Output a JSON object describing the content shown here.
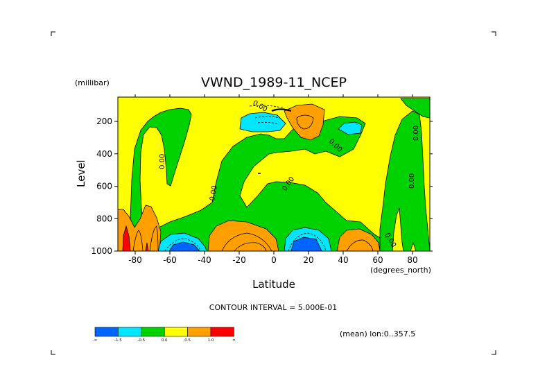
{
  "chart_data": {
    "type": "contour",
    "title": "VWND_1989-11_NCEP",
    "ylabel": "Level",
    "yunits": "(millibar)",
    "xlabel": "Latitude",
    "xunits": "(degrees_north)",
    "xlim": [
      -90,
      90
    ],
    "ylim": [
      1000,
      50
    ],
    "x_ticks": [
      -80,
      -60,
      -40,
      -20,
      0,
      20,
      40,
      60,
      80
    ],
    "x_tick_labels": [
      "-80",
      "-60",
      "-40",
      "-20",
      "0",
      "20",
      "40",
      "60",
      "80"
    ],
    "y_ticks": [
      200,
      400,
      600,
      800,
      1000
    ],
    "y_tick_labels": [
      "200",
      "400",
      "600",
      "800",
      "1000"
    ],
    "contour_interval_text": "CONTOUR INTERVAL = 5.000E-01",
    "contour_labels": [
      "0.00",
      "0.00",
      "0.00",
      "0.00",
      "0.00",
      "0.00",
      "0.00",
      "0.00"
    ],
    "footer_note": "(mean) lon:0..357.5",
    "colorbar": {
      "colors": [
        "#0064ff",
        "#00e6ff",
        "#00d200",
        "#ffff00",
        "#ffa000",
        "#ff0000"
      ],
      "labels": [
        "-∞",
        "-1.5",
        "-0.5",
        "0.0",
        "0.5",
        "1.0",
        "∞"
      ]
    }
  }
}
